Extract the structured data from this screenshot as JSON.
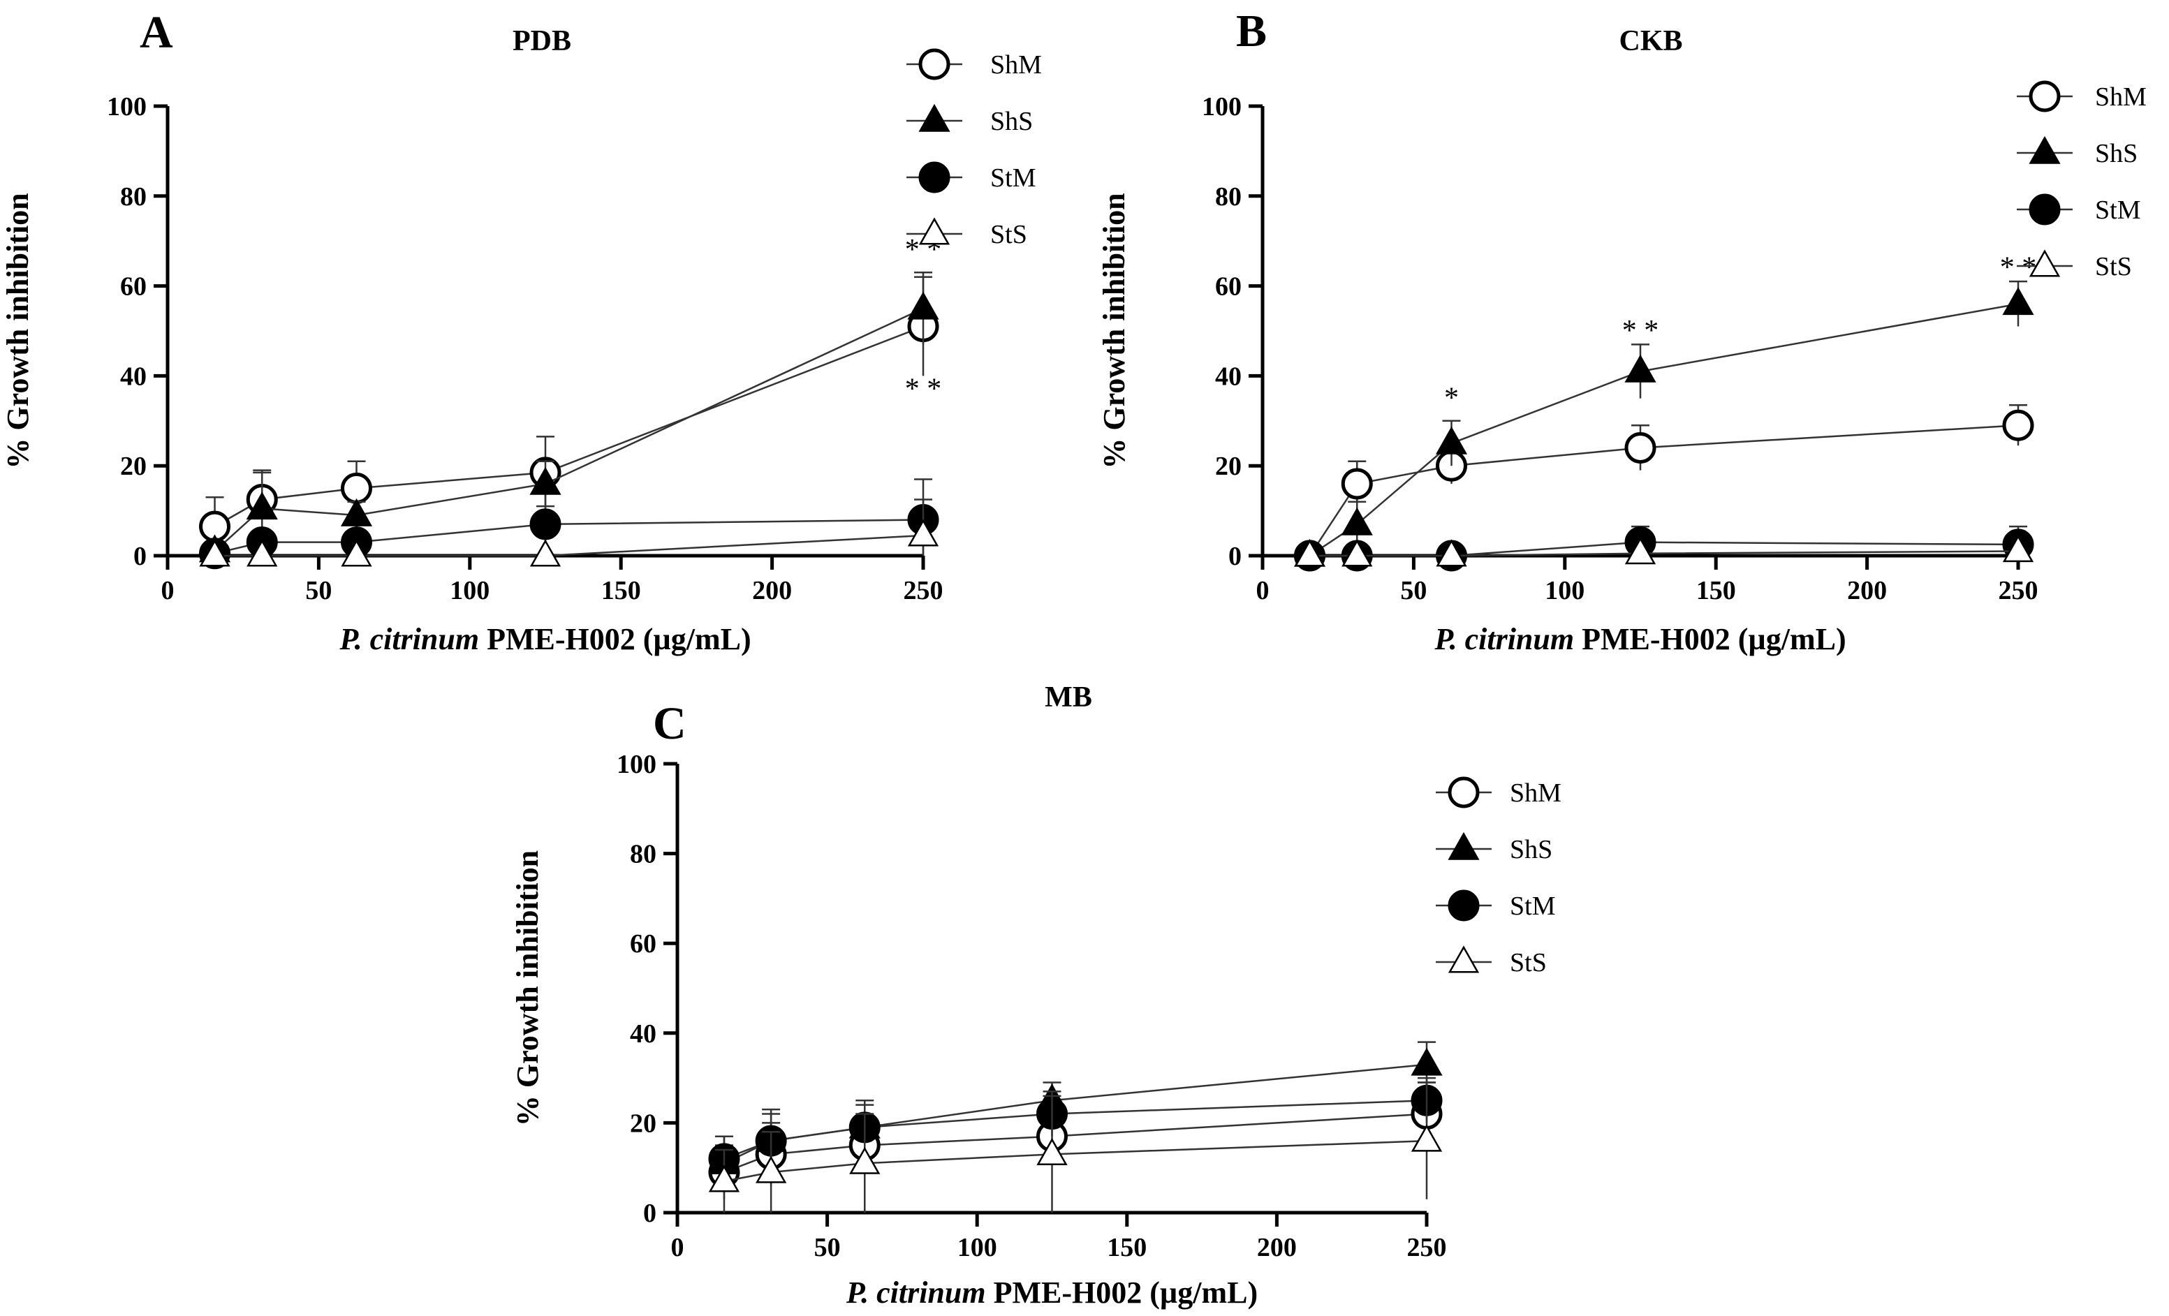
{
  "figure": {
    "shared": {
      "xlabel_italic": "P. citrinum",
      "xlabel_rest": " PME-H002 (µg/mL)",
      "ylabel": "%  Growth inhibition",
      "xticks": [
        "0",
        "50",
        "100",
        "150",
        "200",
        "250"
      ],
      "yticks": [
        "0",
        "20",
        "40",
        "60",
        "80",
        "100"
      ]
    }
  },
  "chart_data": [
    {
      "type": "line",
      "panel_letter": "A",
      "title": "PDB",
      "xlabel": "P. citrinum PME-H002 (µg/mL)",
      "ylabel": "% Growth inhibition",
      "xlim": [
        0,
        250
      ],
      "ylim": [
        0,
        100
      ],
      "legend_position": "top-right",
      "series": [
        {
          "name": "ShM",
          "marker": "circle-open",
          "x": [
            15.6,
            31.25,
            62.5,
            125,
            250
          ],
          "y": [
            6.5,
            12.5,
            15,
            18.5,
            51
          ],
          "err": [
            6.5,
            6.5,
            6,
            8,
            11
          ]
        },
        {
          "name": "ShS",
          "marker": "triangle-filled",
          "x": [
            15.6,
            31.25,
            62.5,
            125,
            250
          ],
          "y": [
            1,
            10.5,
            9,
            16,
            55
          ],
          "err": [
            1,
            8,
            3,
            5,
            8
          ]
        },
        {
          "name": "StM",
          "marker": "circle-filled",
          "x": [
            15.6,
            31.25,
            62.5,
            125,
            250
          ],
          "y": [
            0.5,
            3,
            3,
            7,
            8
          ],
          "err": [
            1,
            2.5,
            0,
            4,
            9
          ]
        },
        {
          "name": "StS",
          "marker": "triangle-open",
          "x": [
            15.6,
            31.25,
            62.5,
            125,
            250
          ],
          "y": [
            0,
            0,
            0,
            0,
            4.5
          ],
          "err": [
            0,
            0,
            0,
            0,
            8
          ]
        }
      ],
      "annotations": [
        {
          "text": "* *",
          "x": 250,
          "y": 66
        },
        {
          "text": "* *",
          "x": 250,
          "y": 35
        }
      ]
    },
    {
      "type": "line",
      "panel_letter": "B",
      "title": "CKB",
      "xlabel": "P. citrinum PME-H002 (µg/mL)",
      "ylabel": "% Growth inhibition",
      "xlim": [
        0,
        250
      ],
      "ylim": [
        0,
        100
      ],
      "legend_position": "top-right",
      "series": [
        {
          "name": "ShM",
          "marker": "circle-open",
          "x": [
            15.6,
            31.25,
            62.5,
            125,
            250
          ],
          "y": [
            0,
            16,
            20,
            24,
            29
          ],
          "err": [
            0,
            5,
            4,
            5,
            4.5
          ]
        },
        {
          "name": "ShS",
          "marker": "triangle-filled",
          "x": [
            15.6,
            31.25,
            62.5,
            125,
            250
          ],
          "y": [
            0,
            7,
            25,
            41,
            56
          ],
          "err": [
            0,
            5,
            5,
            6,
            5
          ]
        },
        {
          "name": "StM",
          "marker": "circle-filled",
          "x": [
            15.6,
            31.25,
            62.5,
            125,
            250
          ],
          "y": [
            0,
            0,
            0,
            3,
            2.5
          ],
          "err": [
            0,
            0,
            0,
            3.5,
            4
          ]
        },
        {
          "name": "StS",
          "marker": "triangle-open",
          "x": [
            15.6,
            31.25,
            62.5,
            125,
            250
          ],
          "y": [
            0,
            0,
            0,
            0.5,
            1
          ],
          "err": [
            0,
            0,
            0,
            0,
            0
          ]
        }
      ],
      "annotations": [
        {
          "text": "*",
          "x": 62.5,
          "y": 33
        },
        {
          "text": "* *",
          "x": 125,
          "y": 48
        },
        {
          "text": "* *",
          "x": 250,
          "y": 62
        }
      ]
    },
    {
      "type": "line",
      "panel_letter": "C",
      "title": "MB",
      "xlabel": "P. citrinum PME-H002 (µg/mL)",
      "ylabel": "% Growth inhibition",
      "xlim": [
        0,
        250
      ],
      "ylim": [
        0,
        100
      ],
      "legend_position": "top-right",
      "series": [
        {
          "name": "ShM",
          "marker": "circle-open",
          "x": [
            15.6,
            31.25,
            62.5,
            125,
            250
          ],
          "y": [
            9,
            13,
            15,
            17,
            22
          ],
          "err": [
            6,
            7,
            6,
            6,
            7
          ]
        },
        {
          "name": "ShS",
          "marker": "triangle-filled",
          "x": [
            15.6,
            31.25,
            62.5,
            125,
            250
          ],
          "y": [
            11,
            16,
            19,
            25,
            33
          ],
          "err": [
            6,
            7,
            6,
            4,
            5
          ]
        },
        {
          "name": "StM",
          "marker": "circle-filled",
          "x": [
            15.6,
            31.25,
            62.5,
            125,
            250
          ],
          "y": [
            12,
            16,
            19,
            22,
            25
          ],
          "err": [
            5,
            6,
            5,
            5,
            5
          ]
        },
        {
          "name": "StS",
          "marker": "triangle-open",
          "x": [
            15.6,
            31.25,
            62.5,
            125,
            250
          ],
          "y": [
            7,
            9,
            11,
            13,
            16
          ],
          "err": [
            7,
            9,
            11,
            13,
            13
          ]
        }
      ],
      "annotations": []
    }
  ]
}
